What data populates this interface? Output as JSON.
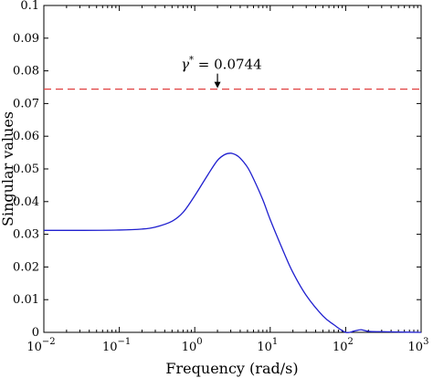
{
  "chart_data": {
    "type": "line",
    "xlabel": "Frequency (rad/s)",
    "ylabel": "Singular values",
    "xscale": "log",
    "xlim": [
      0.01,
      1000
    ],
    "ylim": [
      0,
      0.1
    ],
    "grid": false,
    "x_ticks": [
      {
        "value": 0.01,
        "base": "10",
        "exp": "−2"
      },
      {
        "value": 0.1,
        "base": "10",
        "exp": "−1"
      },
      {
        "value": 1,
        "base": "10",
        "exp": "0"
      },
      {
        "value": 10,
        "base": "10",
        "exp": "1"
      },
      {
        "value": 100,
        "base": "10",
        "exp": "2"
      },
      {
        "value": 1000,
        "base": "10",
        "exp": "3"
      }
    ],
    "y_ticks": [
      "0",
      "0.01",
      "0.02",
      "0.03",
      "0.04",
      "0.05",
      "0.06",
      "0.07",
      "0.08",
      "0.09",
      "0.1"
    ],
    "series": [
      {
        "color": "#1f1fcf",
        "style": "solid",
        "x": [
          0.01,
          0.03,
          0.1,
          0.2,
          0.3,
          0.5,
          0.7,
          1.0,
          1.5,
          2.0,
          2.5,
          3.0,
          3.5,
          4.0,
          5.0,
          6.0,
          8.0,
          10,
          15,
          20,
          30,
          50,
          70,
          100,
          130,
          160,
          200,
          300,
          500,
          1000
        ],
        "y": [
          0.0312,
          0.0312,
          0.0313,
          0.0316,
          0.0322,
          0.034,
          0.0367,
          0.0418,
          0.0483,
          0.0526,
          0.0544,
          0.0548,
          0.0543,
          0.0533,
          0.0505,
          0.047,
          0.0405,
          0.0345,
          0.0247,
          0.0183,
          0.0113,
          0.005,
          0.0023,
          0.0,
          0.0004,
          0.0008,
          0.0003,
          0.0002,
          0.0001,
          0.0
        ]
      },
      {
        "color": "#e04040",
        "style": "dashed",
        "x": [
          0.01,
          1000
        ],
        "y": [
          0.0744,
          0.0744
        ]
      }
    ],
    "annotation": {
      "symbol": "γ",
      "sup": "*",
      "text": " = 0.0744",
      "x": 2,
      "y": 0.0744
    }
  }
}
